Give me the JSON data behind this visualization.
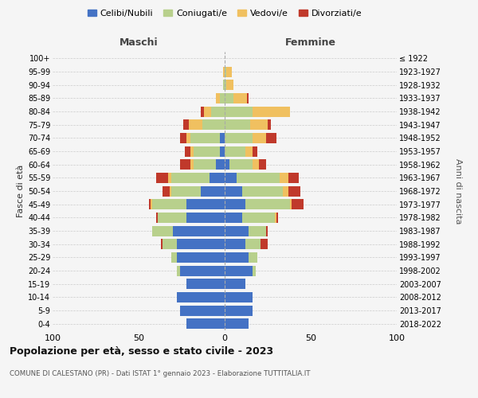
{
  "age_groups": [
    "0-4",
    "5-9",
    "10-14",
    "15-19",
    "20-24",
    "25-29",
    "30-34",
    "35-39",
    "40-44",
    "45-49",
    "50-54",
    "55-59",
    "60-64",
    "65-69",
    "70-74",
    "75-79",
    "80-84",
    "85-89",
    "90-94",
    "95-99",
    "100+"
  ],
  "birth_years": [
    "2018-2022",
    "2013-2017",
    "2008-2012",
    "2003-2007",
    "1998-2002",
    "1993-1997",
    "1988-1992",
    "1983-1987",
    "1978-1982",
    "1973-1977",
    "1968-1972",
    "1963-1967",
    "1958-1962",
    "1953-1957",
    "1948-1952",
    "1943-1947",
    "1938-1942",
    "1933-1937",
    "1928-1932",
    "1923-1927",
    "≤ 1922"
  ],
  "maschi": {
    "celibi": [
      22,
      26,
      28,
      22,
      26,
      28,
      28,
      30,
      22,
      22,
      14,
      9,
      5,
      3,
      3,
      0,
      0,
      0,
      0,
      0,
      0
    ],
    "coniugati": [
      0,
      0,
      0,
      0,
      2,
      3,
      8,
      12,
      17,
      20,
      17,
      22,
      13,
      15,
      17,
      13,
      8,
      3,
      1,
      0,
      0
    ],
    "vedovi": [
      0,
      0,
      0,
      0,
      0,
      0,
      0,
      0,
      0,
      1,
      1,
      2,
      2,
      2,
      2,
      8,
      4,
      2,
      0,
      1,
      0
    ],
    "divorziati": [
      0,
      0,
      0,
      0,
      0,
      0,
      1,
      0,
      1,
      1,
      4,
      7,
      6,
      3,
      4,
      3,
      2,
      0,
      0,
      0,
      0
    ]
  },
  "femmine": {
    "nubili": [
      14,
      16,
      16,
      12,
      16,
      14,
      12,
      14,
      10,
      12,
      10,
      7,
      3,
      0,
      0,
      0,
      0,
      0,
      0,
      0,
      0
    ],
    "coniugate": [
      0,
      0,
      0,
      0,
      2,
      5,
      9,
      10,
      19,
      26,
      24,
      25,
      13,
      12,
      16,
      15,
      16,
      5,
      1,
      1,
      0
    ],
    "vedove": [
      0,
      0,
      0,
      0,
      0,
      0,
      0,
      0,
      1,
      1,
      3,
      5,
      4,
      4,
      8,
      10,
      22,
      8,
      4,
      3,
      0
    ],
    "divorziate": [
      0,
      0,
      0,
      0,
      0,
      0,
      4,
      1,
      1,
      7,
      7,
      6,
      4,
      3,
      6,
      2,
      0,
      1,
      0,
      0,
      0
    ]
  },
  "colors": {
    "celibi_nubili": "#4472c4",
    "coniugati": "#b8d08c",
    "vedovi": "#f0c060",
    "divorziati": "#c0392b"
  },
  "xlim": 100,
  "title": "Popolazione per età, sesso e stato civile - 2023",
  "subtitle": "COMUNE DI CALESTANO (PR) - Dati ISTAT 1° gennaio 2023 - Elaborazione TUTTITALIA.IT",
  "ylabel_left": "Fasce di età",
  "ylabel_right": "Anni di nascita",
  "xlabel_maschi": "Maschi",
  "xlabel_femmine": "Femmine",
  "legend_labels": [
    "Celibi/Nubili",
    "Coniugati/e",
    "Vedovi/e",
    "Divorziati/e"
  ],
  "background_color": "#f5f5f5"
}
